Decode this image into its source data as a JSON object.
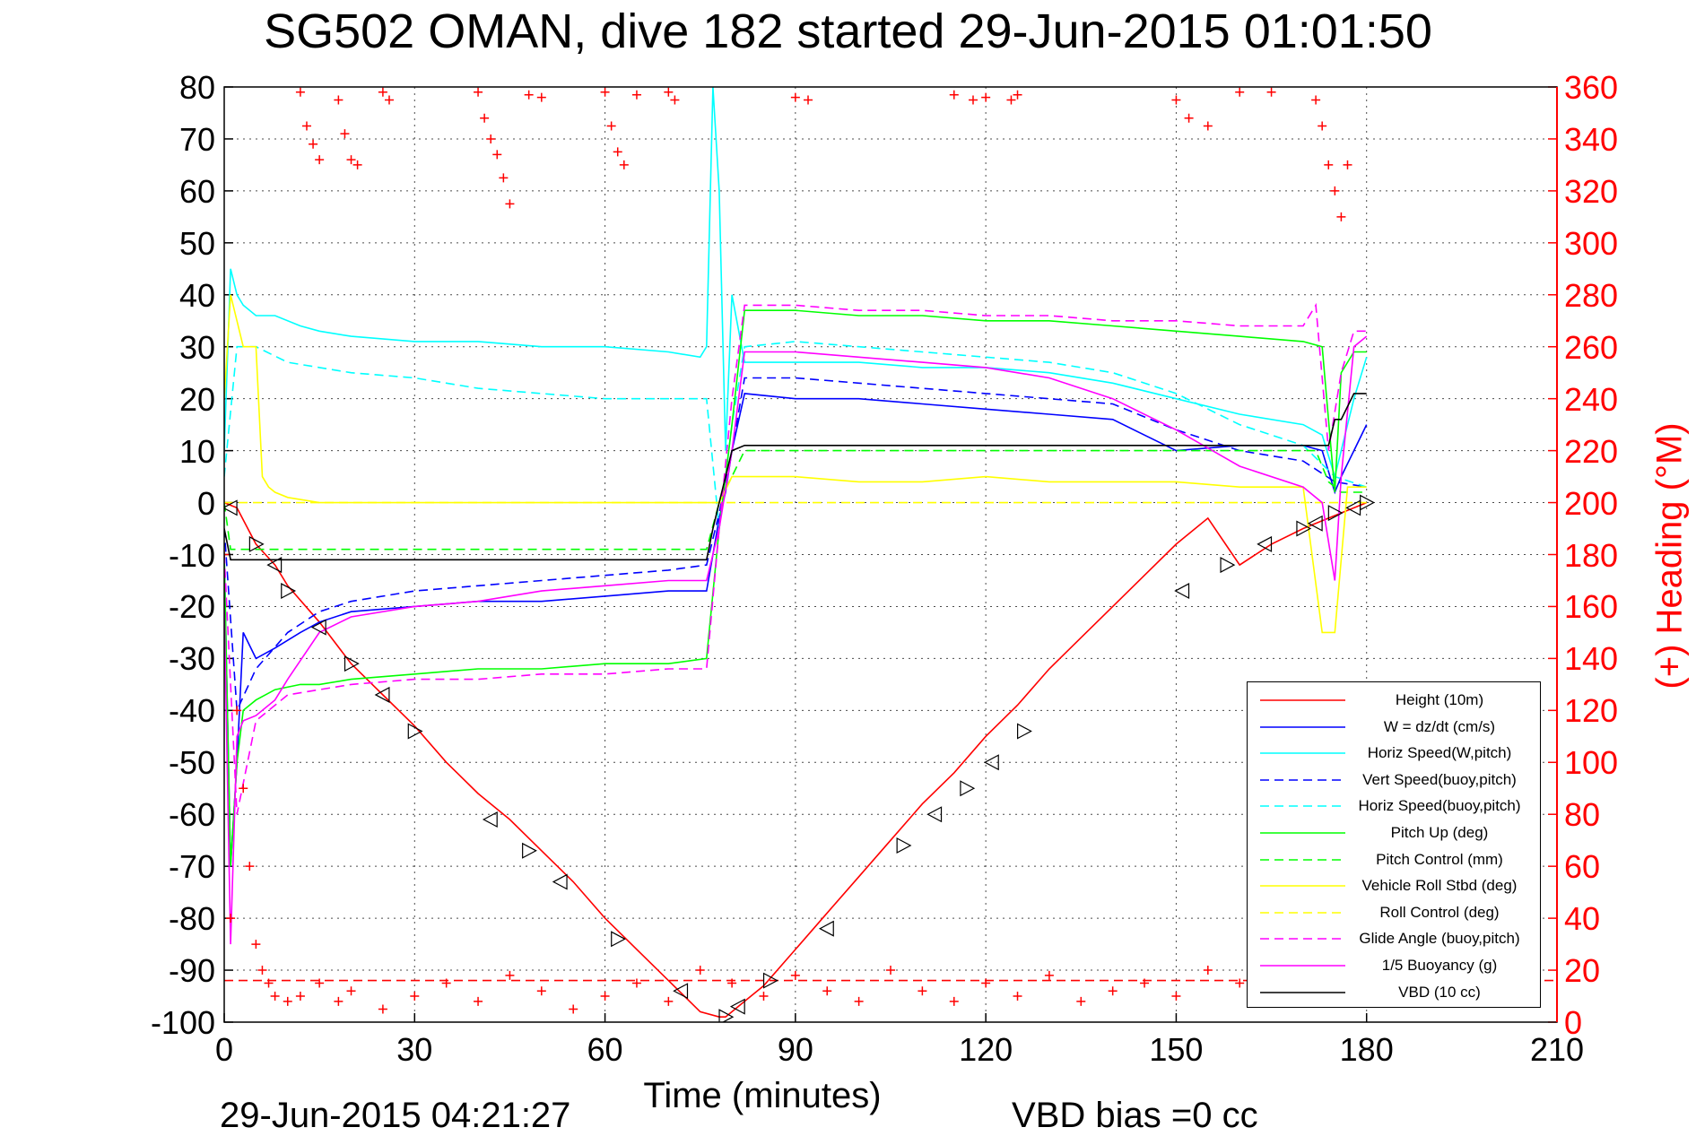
{
  "title": "SG502 OMAN, dive 182 started 29-Jun-2015 01:01:50",
  "footer": {
    "timestamp": "29-Jun-2015 04:21:27",
    "vbd_bias": "VBD bias =0 cc"
  },
  "colors": {
    "height": "#ff0000",
    "w": "#0000ff",
    "cyan": "#00ffff",
    "green": "#00ff00",
    "yellow": "#ffff00",
    "magenta": "#ff00ff",
    "vbd": "#000000",
    "heading": "#ff0000"
  },
  "chart_data": {
    "type": "line",
    "title": "SG502 OMAN, dive 182 started 29-Jun-2015 01:01:50",
    "xlabel": "Time (minutes)",
    "ylabel": "",
    "y2label": "(+) Heading (°M)",
    "xlim": [
      0,
      210
    ],
    "ylim": [
      -100,
      80
    ],
    "y2lim": [
      0,
      360
    ],
    "x_ticks": [
      "0",
      "30",
      "60",
      "90",
      "120",
      "150",
      "180",
      "210"
    ],
    "y_ticks": [
      "80",
      "70",
      "60",
      "50",
      "40",
      "30",
      "20",
      "10",
      "0",
      "-10",
      "-20",
      "-30",
      "-40",
      "-50",
      "-60",
      "-70",
      "-80",
      "-90",
      "-100"
    ],
    "y2_ticks": [
      "360",
      "340",
      "320",
      "300",
      "280",
      "260",
      "240",
      "220",
      "200",
      "180",
      "160",
      "140",
      "120",
      "100",
      "80",
      "60",
      "40",
      "20",
      "0"
    ],
    "grid": true,
    "legend_position": "bottom-right",
    "series": [
      {
        "name": "Height (10m)",
        "color": "#ff0000",
        "dash": "solid",
        "x": [
          0,
          2,
          5,
          8,
          10,
          15,
          20,
          25,
          30,
          35,
          40,
          45,
          50,
          55,
          60,
          65,
          70,
          75,
          78,
          79,
          80,
          82,
          85,
          90,
          95,
          100,
          105,
          110,
          115,
          120,
          125,
          130,
          135,
          140,
          145,
          150,
          155,
          160,
          165,
          170,
          174,
          176,
          178,
          180
        ],
        "y": [
          0,
          -1,
          -8,
          -12,
          -16,
          -23,
          -31,
          -37,
          -43,
          -50,
          -56,
          -61,
          -67,
          -73,
          -80,
          -86,
          -92,
          -98,
          -99,
          -99,
          -98,
          -96,
          -93,
          -86,
          -79,
          -72,
          -65,
          -58,
          -52,
          -45,
          -39,
          -32,
          -26,
          -20,
          -14,
          -8,
          -3,
          -12,
          -8,
          -5,
          -3,
          -2,
          -1,
          0
        ]
      },
      {
        "name": "W = dz/dt (cm/s)",
        "color": "#0000ff",
        "dash": "solid",
        "x": [
          0,
          1,
          2,
          3,
          5,
          8,
          12,
          15,
          20,
          30,
          40,
          50,
          60,
          70,
          76,
          77,
          78,
          79,
          80,
          82,
          90,
          100,
          110,
          120,
          130,
          140,
          150,
          160,
          170,
          173,
          175,
          176,
          178,
          180
        ],
        "y": [
          -10,
          -70,
          -50,
          -25,
          -30,
          -28,
          -25,
          -23,
          -21,
          -20,
          -19,
          -19,
          -18,
          -17,
          -17,
          -10,
          -3,
          2,
          10,
          21,
          20,
          20,
          19,
          18,
          17,
          16,
          10,
          11,
          11,
          10,
          2,
          5,
          10,
          15
        ]
      },
      {
        "name": "Horiz Speed(W,pitch)",
        "color": "#00ffff",
        "dash": "solid",
        "x": [
          0,
          1,
          2,
          3,
          5,
          8,
          12,
          15,
          20,
          30,
          40,
          50,
          60,
          70,
          75,
          76,
          77,
          78,
          79,
          80,
          82,
          90,
          100,
          110,
          120,
          130,
          140,
          150,
          160,
          170,
          173,
          175,
          176,
          178,
          180
        ],
        "y": [
          10,
          45,
          40,
          38,
          36,
          36,
          34,
          33,
          32,
          31,
          31,
          30,
          30,
          29,
          28,
          30,
          80,
          60,
          10,
          40,
          27,
          27,
          27,
          26,
          26,
          25,
          23,
          20,
          17,
          15,
          13,
          5,
          10,
          20,
          28
        ]
      },
      {
        "name": "Vert Speed(buoy,pitch)",
        "color": "#0000ff",
        "dash": "dashed",
        "x": [
          0,
          2,
          5,
          10,
          15,
          20,
          30,
          40,
          50,
          60,
          70,
          76,
          78,
          80,
          82,
          90,
          100,
          110,
          120,
          130,
          140,
          150,
          160,
          170,
          175,
          180
        ],
        "y": [
          -5,
          -40,
          -32,
          -25,
          -21,
          -19,
          -17,
          -16,
          -15,
          -14,
          -13,
          -12,
          -2,
          10,
          24,
          24,
          23,
          22,
          21,
          20,
          19,
          14,
          10,
          8,
          4,
          3
        ]
      },
      {
        "name": "Horiz Speed(buoy,pitch)",
        "color": "#00ffff",
        "dash": "dashed",
        "x": [
          0,
          2,
          5,
          10,
          15,
          20,
          30,
          40,
          50,
          60,
          70,
          76,
          78,
          80,
          82,
          90,
          100,
          110,
          120,
          130,
          140,
          150,
          160,
          170,
          175,
          180
        ],
        "y": [
          5,
          30,
          30,
          27,
          26,
          25,
          24,
          22,
          21,
          20,
          20,
          20,
          -5,
          15,
          30,
          31,
          30,
          29,
          28,
          27,
          25,
          21,
          15,
          11,
          5,
          3
        ]
      },
      {
        "name": "Pitch Up (deg)",
        "color": "#00ff00",
        "dash": "solid",
        "x": [
          0,
          1,
          2,
          3,
          5,
          8,
          12,
          15,
          20,
          30,
          40,
          50,
          60,
          70,
          76,
          78,
          80,
          82,
          90,
          100,
          110,
          120,
          130,
          140,
          150,
          160,
          170,
          173,
          175,
          176,
          178,
          180
        ],
        "y": [
          -10,
          -70,
          -50,
          -40,
          -38,
          -36,
          -35,
          -35,
          -34,
          -33,
          -32,
          -32,
          -31,
          -31,
          -30,
          -5,
          15,
          37,
          37,
          36,
          36,
          35,
          35,
          34,
          33,
          32,
          31,
          30,
          2,
          25,
          29,
          29
        ]
      },
      {
        "name": "Pitch Control (mm)",
        "color": "#00ff00",
        "dash": "dashed",
        "x": [
          0,
          1,
          2,
          4,
          30,
          60,
          76,
          78,
          82,
          130,
          150,
          172,
          174,
          176,
          180
        ],
        "y": [
          0,
          -9,
          -9,
          -9,
          -9,
          -9,
          -9,
          0,
          10,
          10,
          10,
          10,
          4,
          2,
          2
        ]
      },
      {
        "name": "Vehicle Roll Stbd (deg)",
        "color": "#ffff00",
        "dash": "solid",
        "x": [
          0,
          1,
          2,
          3,
          5,
          6,
          7,
          8,
          10,
          15,
          20,
          30,
          40,
          50,
          60,
          70,
          76,
          78,
          80,
          82,
          90,
          100,
          110,
          120,
          130,
          140,
          150,
          160,
          170,
          173,
          175,
          177,
          180
        ],
        "y": [
          20,
          40,
          35,
          30,
          30,
          5,
          3,
          2,
          1,
          0,
          0,
          0,
          0,
          0,
          0,
          0,
          0,
          0,
          5,
          5,
          5,
          4,
          4,
          5,
          4,
          4,
          4,
          3,
          3,
          -25,
          -25,
          3,
          3
        ]
      },
      {
        "name": "Roll Control (deg)",
        "color": "#ffff00",
        "dash": "dashed",
        "x": [
          0,
          2,
          4,
          30,
          60,
          76,
          78,
          82,
          130,
          172,
          176,
          180
        ],
        "y": [
          0,
          0,
          0,
          0,
          0,
          0,
          0,
          0,
          0,
          0,
          0,
          0
        ]
      },
      {
        "name": "Glide Angle (buoy,pitch)",
        "color": "#ff00ff",
        "dash": "dashed",
        "x": [
          0,
          2,
          5,
          10,
          15,
          20,
          30,
          40,
          50,
          60,
          70,
          76,
          78,
          80,
          82,
          90,
          100,
          110,
          120,
          130,
          140,
          150,
          160,
          170,
          172,
          174,
          176,
          178,
          180
        ],
        "y": [
          -10,
          -60,
          -42,
          -37,
          -36,
          -35,
          -34,
          -34,
          -33,
          -33,
          -32,
          -32,
          -5,
          20,
          38,
          38,
          37,
          37,
          36,
          36,
          35,
          35,
          34,
          34,
          38,
          10,
          25,
          33,
          33
        ]
      },
      {
        "name": "1/5 Buoyancy (g)",
        "color": "#ff00ff",
        "dash": "solid",
        "x": [
          0,
          1,
          2,
          3,
          5,
          8,
          10,
          15,
          20,
          30,
          40,
          50,
          60,
          70,
          76,
          78,
          80,
          82,
          90,
          100,
          110,
          120,
          130,
          140,
          150,
          160,
          170,
          173,
          175,
          176,
          178,
          180
        ],
        "y": [
          -20,
          -85,
          -45,
          -42,
          -41,
          -38,
          -34,
          -25,
          -22,
          -20,
          -19,
          -17,
          -16,
          -15,
          -15,
          -5,
          10,
          29,
          29,
          28,
          27,
          26,
          24,
          20,
          14,
          7,
          3,
          0,
          -15,
          5,
          30,
          32
        ]
      },
      {
        "name": "VBD (10 cc)",
        "color": "#000000",
        "dash": "solid",
        "x": [
          0,
          1,
          2,
          20,
          40,
          60,
          70,
          76,
          77,
          78,
          79,
          80,
          82,
          90,
          120,
          150,
          172,
          174,
          175,
          176,
          178,
          180
        ],
        "y": [
          -5,
          -11,
          -11,
          -11,
          -11,
          -11,
          -11,
          -11,
          -5,
          0,
          5,
          10,
          11,
          11,
          11,
          11,
          11,
          11,
          16,
          16,
          21,
          21
        ]
      },
      {
        "name": "(+) Heading (°M)",
        "color": "#ff0000",
        "marker": "+",
        "axis": "right",
        "x": [
          0,
          1,
          2,
          3,
          4,
          5,
          6,
          7,
          8,
          10,
          12,
          15,
          18,
          20,
          25,
          30,
          35,
          40,
          45,
          50,
          55,
          60,
          65,
          70,
          75,
          80,
          85,
          90,
          95,
          100,
          105,
          110,
          115,
          120,
          125,
          130,
          135,
          140,
          145,
          150,
          155,
          160,
          165,
          170,
          175,
          178
        ],
        "y": [
          180,
          40,
          120,
          90,
          60,
          30,
          20,
          15,
          10,
          8,
          10,
          15,
          8,
          12,
          5,
          10,
          15,
          8,
          18,
          12,
          5,
          10,
          15,
          8,
          20,
          15,
          10,
          18,
          12,
          8,
          20,
          12,
          8,
          15,
          10,
          18,
          8,
          12,
          15,
          10,
          20,
          15,
          12,
          8,
          14,
          15
        ]
      },
      {
        "name": "",
        "color": "#ff0000",
        "marker": "+",
        "axis": "right",
        "x": [
          12,
          13,
          14,
          15,
          18,
          19,
          20,
          21,
          25,
          26,
          40,
          41,
          42,
          43,
          44,
          45,
          48,
          50,
          60,
          61,
          62,
          63,
          65,
          70,
          71,
          90,
          92,
          115,
          118,
          120,
          124,
          125,
          150,
          152,
          155,
          160,
          165,
          172,
          173,
          174,
          175,
          176,
          177
        ],
        "y": [
          358,
          345,
          338,
          332,
          355,
          342,
          332,
          330,
          358,
          355,
          358,
          348,
          340,
          334,
          325,
          315,
          357,
          356,
          358,
          345,
          335,
          330,
          357,
          358,
          355,
          356,
          355,
          357,
          355,
          356,
          355,
          357,
          355,
          348,
          345,
          358,
          358,
          355,
          345,
          330,
          320,
          310,
          330
        ]
      },
      {
        "name": "",
        "color": "#ff0000",
        "dash": "dashed",
        "axis": "right",
        "x": [
          0,
          210
        ],
        "y": [
          16,
          16
        ]
      }
    ],
    "height_markers": {
      "x": [
        1,
        5,
        8,
        10,
        15,
        20,
        25,
        30,
        42,
        48,
        53,
        62,
        72,
        79,
        81,
        86,
        95,
        107,
        112,
        117,
        121,
        126,
        151,
        158,
        164,
        170,
        172,
        175,
        178,
        180
      ],
      "y": [
        -1,
        -8,
        -12,
        -17,
        -24,
        -31,
        -37,
        -44,
        -61,
        -67,
        -73,
        -84,
        -94,
        -99,
        -97,
        -92,
        -82,
        -66,
        -60,
        -55,
        -50,
        -44,
        -17,
        -12,
        -8,
        -5,
        -4,
        -2,
        -1,
        0
      ]
    }
  }
}
